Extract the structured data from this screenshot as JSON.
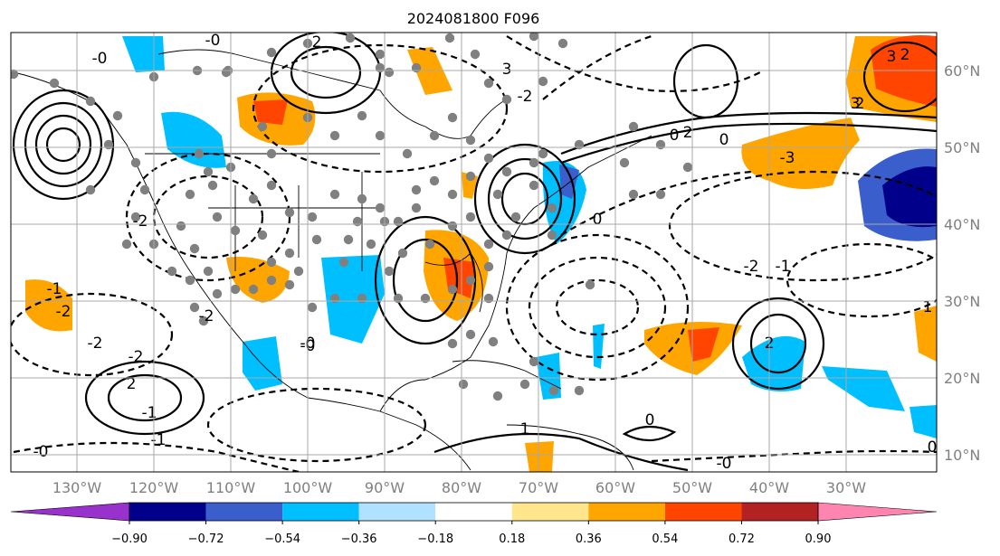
{
  "title": "2024081800 F096",
  "lon_labels": [
    "130°W",
    "120°W",
    "110°W",
    "100°W",
    "90°W",
    "80°W",
    "70°W",
    "60°W",
    "50°W",
    "40°W",
    "30°W"
  ],
  "lat_labels": [
    "60°N",
    "50°N",
    "40°N",
    "30°N",
    "20°N",
    "10°N"
  ],
  "colorbar": {
    "ticks": [
      "−0.90",
      "−0.72",
      "−0.54",
      "−0.36",
      "−0.18",
      "0.18",
      "0.36",
      "0.54",
      "0.72",
      "0.90"
    ],
    "colors": [
      "#9932cc",
      "#00008b",
      "#3a5fcd",
      "#00bfff",
      "#b0e2ff",
      "#ffffff",
      "#ffe68c",
      "#ffa500",
      "#ff4500",
      "#b22222",
      "#ff85b0"
    ]
  },
  "contour_labels": [
    "-0",
    "-0",
    "-2",
    "2",
    "3",
    "-2",
    "-2",
    "-2",
    "0",
    "-3",
    "2",
    "2",
    "0",
    "3",
    "3",
    "-2",
    "-1",
    "1",
    "-1",
    "2",
    "-0",
    "0",
    "-2",
    "2",
    "-1",
    "1",
    "2",
    "-2",
    "-0",
    "-0",
    "0",
    "-1",
    "-0",
    "0"
  ]
}
